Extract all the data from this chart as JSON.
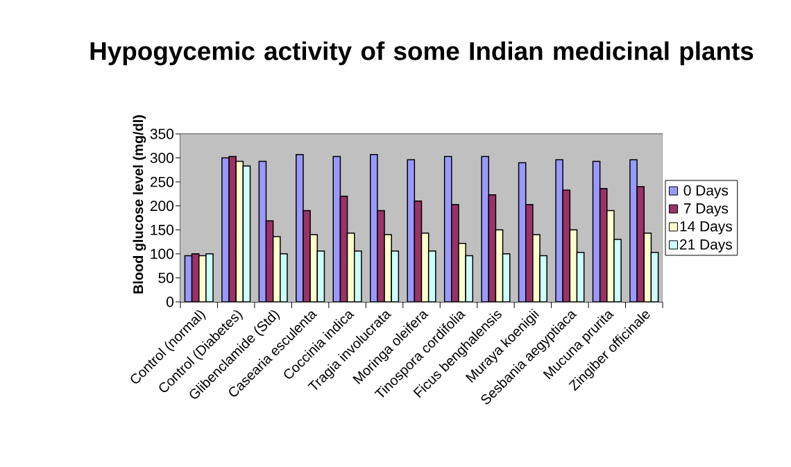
{
  "chart_data": {
    "type": "bar",
    "title": "Hypogycemic activity of some Indian medicinal plants",
    "ylabel": "Blood glucose level (mg/dl)",
    "categories": [
      "Control (normal)",
      "Control (Diabetes)",
      "Glibenclamide (Std)",
      "Casearia esculenta",
      "Coccinia indica",
      "Tragia involucrata",
      "Moringa oleifera",
      "Tinospora cordifolia",
      "Ficus benghalensis",
      "Muraya koenigii",
      "Sesbania aegyptiaca",
      "Mucuna prurita",
      "Zingiber officinale"
    ],
    "series": [
      {
        "name": "0 Days",
        "color": "#9999ff",
        "values": [
          96,
          300,
          293,
          307,
          303,
          307,
          296,
          303,
          303,
          290,
          296,
          293,
          296
        ]
      },
      {
        "name": "7 Days",
        "color": "#993366",
        "values": [
          100,
          303,
          169,
          190,
          220,
          190,
          210,
          203,
          223,
          203,
          233,
          236,
          240
        ]
      },
      {
        "name": "14 Days",
        "color": "#ffffcc",
        "values": [
          96,
          293,
          136,
          140,
          143,
          140,
          143,
          122,
          150,
          140,
          150,
          190,
          143
        ]
      },
      {
        "name": "21 Days",
        "color": "#ccffff",
        "values": [
          100,
          283,
          100,
          106,
          106,
          106,
          106,
          96,
          100,
          96,
          103,
          130,
          103
        ]
      }
    ],
    "ylim": [
      0,
      350
    ],
    "yticks": [
      0,
      50,
      100,
      150,
      200,
      250,
      300,
      350
    ],
    "grid": "y",
    "legend": "right"
  }
}
